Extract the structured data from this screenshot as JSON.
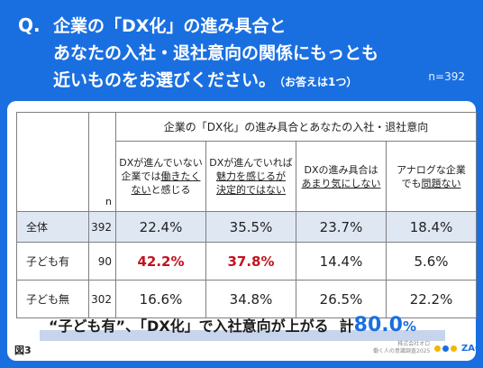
{
  "header": {
    "q_mark": "Q.",
    "line1": "企業の「DX化」の進み具合と",
    "line2": "あなたの入社・退社意向の関係にもっとも",
    "line3": "近いものをお選びください。",
    "note": "（お答えは1つ）",
    "n_total": "n=392"
  },
  "table": {
    "group_header": "企業の「DX化」の進み具合とあなたの入社・退社意向",
    "n_header": "n",
    "columns": [
      {
        "line1": "DXが進んでいない",
        "line2": "企業では",
        "line2u": "働きたく",
        "line3u": "ない",
        "line3": "と感じる"
      },
      {
        "line1": "DXが進んでいれば",
        "line2u": "魅力を感じるが",
        "line3u": "決定的ではない",
        "line3": ""
      },
      {
        "line1": "DXの進み具合は",
        "line2u": "あまり気にしない",
        "line3": ""
      },
      {
        "line1": "アナログな企業",
        "line2": "でも",
        "line2u": "問題ない",
        "line3": ""
      }
    ],
    "rows": [
      {
        "label": "全体",
        "n": "392",
        "values": [
          "22.4%",
          "35.5%",
          "23.7%",
          "18.4%"
        ]
      },
      {
        "label": "子ども有",
        "n": "90",
        "values": [
          "42.2%",
          "37.8%",
          "14.4%",
          "5.6%"
        ]
      },
      {
        "label": "子ども無",
        "n": "302",
        "values": [
          "16.6%",
          "34.8%",
          "26.5%",
          "22.2%"
        ]
      }
    ]
  },
  "summary": {
    "text": "“子ども有”、「DX化」で入社意向が上がる",
    "total_label": "計",
    "total_value": "80.0",
    "total_unit": "%"
  },
  "footer": {
    "figure_label": "図3",
    "credit_line1": "株式会社オロ",
    "credit_line2": "働く人の意識調査2025",
    "logo_text": "ZAC"
  },
  "colors": {
    "brand_blue": "#1a6fe0",
    "highlight_red": "#c0141e",
    "row_shade": "#dfe7f3",
    "logo_dots": [
      "#f2b705",
      "#1a6fe0",
      "#f2b705"
    ]
  }
}
